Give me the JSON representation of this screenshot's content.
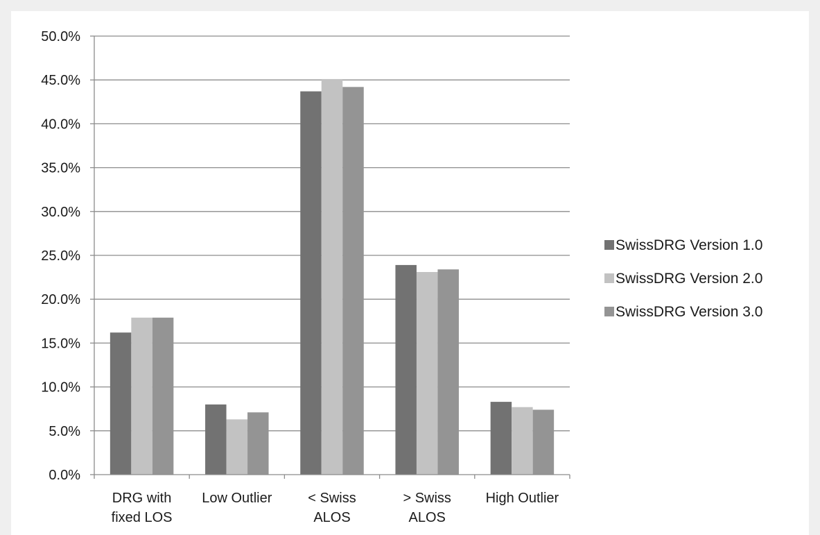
{
  "chart_data": {
    "type": "bar",
    "title": "",
    "xlabel": "",
    "ylabel": "",
    "ylim": [
      0,
      50
    ],
    "ytick_step": 5,
    "ytick_labels": [
      "0.0%",
      "5.0%",
      "10.0%",
      "15.0%",
      "20.0%",
      "25.0%",
      "30.0%",
      "35.0%",
      "40.0%",
      "45.0%",
      "50.0%"
    ],
    "categories": [
      [
        "DRG with",
        "fixed LOS"
      ],
      [
        "Low Outlier"
      ],
      [
        "< Swiss",
        "ALOS"
      ],
      [
        "> Swiss",
        "ALOS"
      ],
      [
        "High Outlier"
      ]
    ],
    "series": [
      {
        "name": "SwissDRG Version 1.0",
        "color": "#727272",
        "values": [
          16.2,
          8.0,
          43.7,
          23.9,
          8.3
        ]
      },
      {
        "name": "SwissDRG Version 2.0",
        "color": "#c2c2c2",
        "values": [
          17.9,
          6.3,
          45.1,
          23.1,
          7.7
        ]
      },
      {
        "name": "SwissDRG Version 3.0",
        "color": "#949494",
        "values": [
          17.9,
          7.1,
          44.2,
          23.4,
          7.4
        ]
      }
    ],
    "grid": true,
    "legend_position": "right"
  }
}
